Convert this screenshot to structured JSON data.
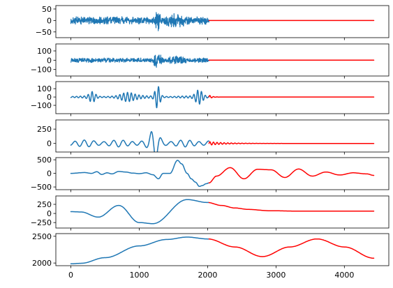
{
  "chart_data": {
    "type": "line",
    "subplot_count": 7,
    "shared_x": true,
    "xlim": [
      -220,
      4650
    ],
    "x_ticks": [
      0,
      1000,
      2000,
      3000,
      4000
    ],
    "x_tick_labels": [
      "0",
      "1000",
      "2000",
      "3000",
      "4000"
    ],
    "colors": {
      "observed": "#1f77b4",
      "forecast": "#ff0000",
      "frame": "#000000"
    },
    "panels": [
      {
        "kind": "noise",
        "amplitude": 15,
        "rate": 0.9,
        "ylim": [
          -75,
          65
        ],
        "y_ticks": [
          -50,
          0,
          50
        ],
        "y_tick_labels": [
          "−50",
          "0",
          "50"
        ],
        "bursts": [
          {
            "x": 1270,
            "width": 35,
            "extra_amplitude": 35
          },
          {
            "x": 1540,
            "width": 140,
            "extra_amplitude": 14
          }
        ],
        "forecast_level": 0
      },
      {
        "kind": "noise",
        "amplitude": 22,
        "rate": 0.55,
        "ylim": [
          -170,
          175
        ],
        "y_ticks": [
          -100,
          0,
          100
        ],
        "y_tick_labels": [
          "−100",
          "0",
          "100"
        ],
        "bursts": [
          {
            "x": 1270,
            "width": 45,
            "extra_amplitude": 110
          },
          {
            "x": 1560,
            "width": 110,
            "extra_amplitude": 25
          }
        ],
        "forecast_level": 0
      },
      {
        "kind": "packets",
        "amplitude": 12,
        "rate": 0.11,
        "ylim": [
          -200,
          185
        ],
        "y_ticks": [
          -100,
          0,
          100
        ],
        "y_tick_labels": [
          "−100",
          "0",
          "100"
        ],
        "bursts": [
          {
            "x": 320,
            "width": 60,
            "extra_amplitude": 65
          },
          {
            "x": 880,
            "width": 140,
            "extra_amplitude": 70
          },
          {
            "x": 1270,
            "width": 45,
            "extra_amplitude": 145
          },
          {
            "x": 1880,
            "width": 65,
            "extra_amplitude": 150
          }
        ],
        "forecast_level": 0,
        "forecast_wiggle": {
          "amplitude": 25,
          "decay_length": 40
        }
      },
      {
        "kind": "oscillation",
        "amplitude": 60,
        "rate": 0.045,
        "ylim": [
          -150,
          410
        ],
        "y_ticks": [
          0,
          250
        ],
        "y_tick_labels": [
          "0",
          "250"
        ],
        "bursts": [
          {
            "x": 1230,
            "width": 80,
            "extra_amplitude": 230
          }
        ],
        "forecast_level": 0,
        "forecast_wiggle": {
          "amplitude": 30,
          "decay_length": 250
        }
      },
      {
        "kind": "knots",
        "x": [
          0,
          200,
          300,
          380,
          450,
          530,
          600,
          700,
          800,
          900,
          1000,
          1100,
          1200,
          1280,
          1350,
          1450,
          1560,
          1620,
          1700,
          1760,
          1820,
          1880,
          1920,
          1980,
          2020
        ],
        "y": [
          0,
          30,
          0,
          60,
          -40,
          20,
          -20,
          70,
          50,
          10,
          -10,
          20,
          -50,
          -200,
          0,
          0,
          480,
          350,
          0,
          -200,
          -320,
          -480,
          -450,
          -380,
          -350
        ],
        "ylim": [
          -600,
          580
        ],
        "y_ticks": [
          -500,
          0,
          500
        ],
        "y_tick_labels": [
          "−500",
          "0",
          "500"
        ],
        "forecast": {
          "x": [
            2020,
            2130,
            2330,
            2530,
            2730,
            2930,
            3130,
            3330,
            3530,
            3730,
            3930,
            4130,
            4330,
            4430
          ],
          "y": [
            -350,
            -100,
            210,
            -200,
            150,
            130,
            -150,
            160,
            -100,
            50,
            -60,
            20,
            -20,
            -75
          ]
        }
      },
      {
        "kind": "knots",
        "x": [
          0,
          150,
          400,
          700,
          1000,
          1200,
          1700,
          2000
        ],
        "y": [
          50,
          40,
          -100,
          220,
          -250,
          -280,
          380,
          300
        ],
        "ylim": [
          -400,
          480
        ],
        "y_ticks": [
          -250,
          0,
          250
        ],
        "y_tick_labels": [
          "−250",
          "0",
          "250"
        ],
        "forecast": {
          "x": [
            2000,
            2200,
            2400,
            2600,
            2900,
            3300,
            4430
          ],
          "y": [
            300,
            220,
            150,
            110,
            75,
            65,
            65
          ]
        }
      },
      {
        "kind": "knots",
        "x": [
          0,
          150,
          500,
          1000,
          1400,
          1700,
          2000
        ],
        "y": [
          1985,
          1995,
          2100,
          2320,
          2440,
          2485,
          2450
        ],
        "ylim": [
          1950,
          2550
        ],
        "y_ticks": [
          2000,
          2500
        ],
        "y_tick_labels": [
          "2000",
          "2500"
        ],
        "forecast": {
          "x": [
            2000,
            2400,
            2800,
            3200,
            3600,
            4000,
            4430
          ],
          "y": [
            2450,
            2300,
            2120,
            2300,
            2450,
            2300,
            2090
          ]
        }
      }
    ],
    "observed_range": [
      0,
      2020
    ],
    "forecast_range": [
      2020,
      4430
    ]
  }
}
